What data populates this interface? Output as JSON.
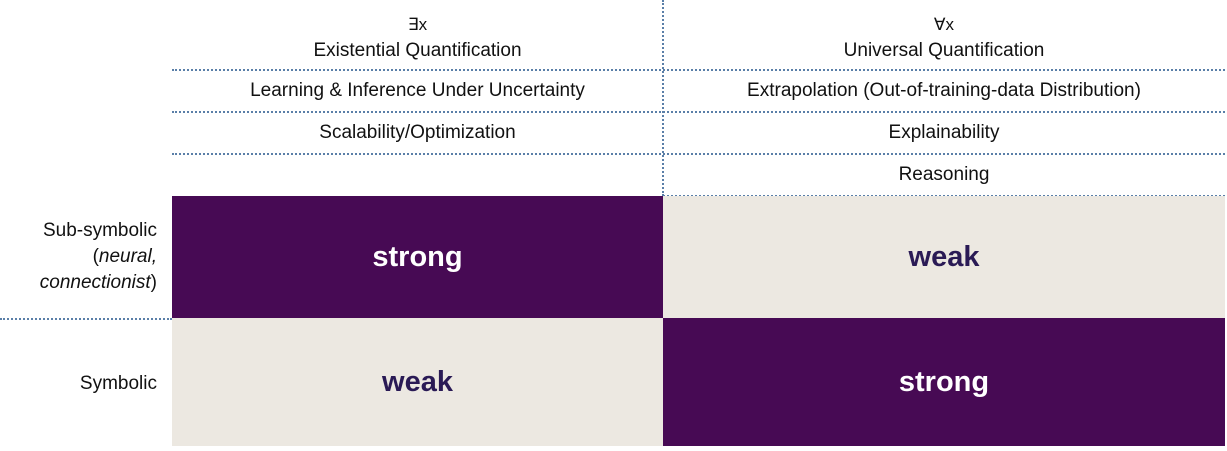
{
  "columns": [
    {
      "symbol": "∃x",
      "title": "Existential Quantification",
      "properties": [
        "Learning & Inference Under Uncertainty",
        "Scalability/Optimization"
      ]
    },
    {
      "symbol": "∀x",
      "title": "Universal Quantification",
      "properties": [
        "Extrapolation (Out-of-training-data Distribution)",
        "Explainability",
        "Reasoning"
      ]
    }
  ],
  "rows": [
    {
      "label_plain": "Sub-symbolic",
      "label_paren_open": "(",
      "label_italic_1": "neural,",
      "label_italic_2": "connectionist",
      "label_paren_close": ")",
      "cells": [
        "strong",
        "weak"
      ]
    },
    {
      "label_plain": "Symbolic",
      "cells": [
        "weak",
        "strong"
      ]
    }
  ],
  "colors": {
    "strong_bg": "#470a54",
    "strong_text": "#ffffff",
    "weak_bg": "#ece8e1",
    "weak_text": "#2a1a55",
    "divider": "#5a7fa8"
  }
}
